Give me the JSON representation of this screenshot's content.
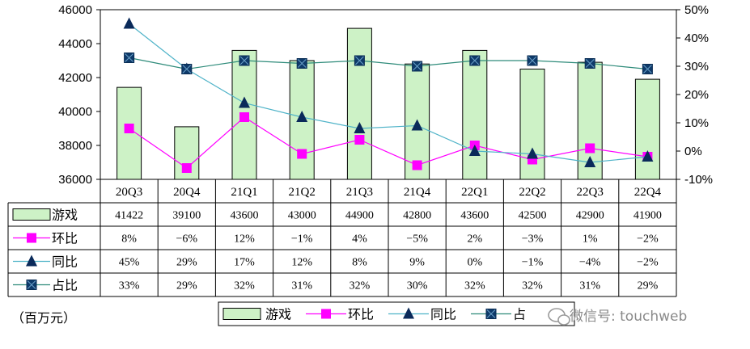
{
  "chart_data": {
    "type": "bar",
    "categories": [
      "20Q3",
      "20Q4",
      "21Q1",
      "21Q2",
      "21Q3",
      "21Q4",
      "22Q1",
      "22Q2",
      "22Q3",
      "22Q4"
    ],
    "title": "",
    "y_left": {
      "min": 36000,
      "max": 46000,
      "ticks": [
        "36000",
        "38000",
        "40000",
        "42000",
        "44000",
        "46000"
      ]
    },
    "y_right": {
      "min": -10,
      "max": 50,
      "ticks": [
        "-10%",
        "0%",
        "10%",
        "20%",
        "30%",
        "40%",
        "50%"
      ]
    },
    "unit_label": "（百万元）",
    "series": [
      {
        "name": "游戏",
        "type": "bar",
        "axis": "left",
        "color": "#cdf2c6",
        "values": [
          41422,
          39100,
          43600,
          43000,
          44900,
          42800,
          43600,
          42500,
          42900,
          41900
        ],
        "labels": [
          "41422",
          "39100",
          "43600",
          "43000",
          "44900",
          "42800",
          "43600",
          "42500",
          "42900",
          "41900"
        ]
      },
      {
        "name": "环比",
        "type": "line",
        "axis": "right",
        "color": "#ff00ff",
        "marker": "square",
        "values": [
          8,
          -6,
          12,
          -1,
          4,
          -5,
          2,
          -3,
          1,
          -2
        ],
        "labels": [
          "8%",
          "−6%",
          "12%",
          "−1%",
          "4%",
          "−5%",
          "2%",
          "−3%",
          "1%",
          "−2%"
        ]
      },
      {
        "name": "同比",
        "type": "line",
        "axis": "right",
        "color": "#4fb3c8",
        "marker": "triangle",
        "values": [
          45,
          29,
          17,
          12,
          8,
          9,
          0,
          -1,
          -4,
          -2
        ],
        "labels": [
          "45%",
          "29%",
          "17%",
          "12%",
          "8%",
          "9%",
          "0%",
          "−1%",
          "−4%",
          "−2%"
        ]
      },
      {
        "name": "占比",
        "type": "line",
        "axis": "right",
        "color": "#2e8b7a",
        "marker": "square-dark",
        "values": [
          33,
          29,
          32,
          31,
          32,
          30,
          32,
          32,
          31,
          29
        ],
        "labels": [
          "33%",
          "29%",
          "32%",
          "31%",
          "32%",
          "30%",
          "32%",
          "32%",
          "31%",
          "29%"
        ]
      }
    ],
    "legend": {
      "position": "bottom",
      "items": [
        "游戏",
        "环比",
        "同比",
        "占"
      ]
    }
  },
  "watermark": "微信号: touchweb"
}
